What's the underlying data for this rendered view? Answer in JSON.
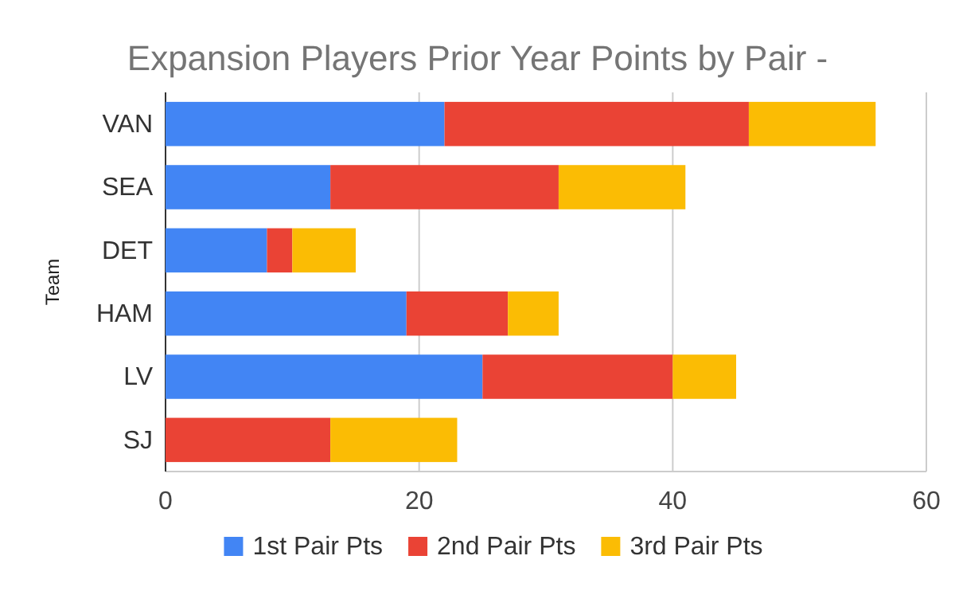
{
  "chart_data": {
    "type": "bar",
    "orientation": "horizontal",
    "stacked": true,
    "title": "Expansion Players Prior Year Points by Pair -",
    "ylabel": "Team",
    "categories": [
      "VAN",
      "SEA",
      "DET",
      "HAM",
      "LV",
      "SJ"
    ],
    "series": [
      {
        "name": "1st Pair Pts",
        "color": "#4285f4",
        "values": [
          22,
          13,
          8,
          19,
          25,
          0
        ]
      },
      {
        "name": "2nd Pair Pts",
        "color": "#ea4335",
        "values": [
          24,
          18,
          2,
          8,
          15,
          13
        ]
      },
      {
        "name": "3rd Pair Pts",
        "color": "#fbbc04",
        "values": [
          10,
          10,
          5,
          4,
          5,
          10
        ]
      }
    ],
    "xlim": [
      0,
      60
    ],
    "xticks": [
      0,
      20,
      40,
      60
    ],
    "grid": "x",
    "legend": "bottom"
  }
}
